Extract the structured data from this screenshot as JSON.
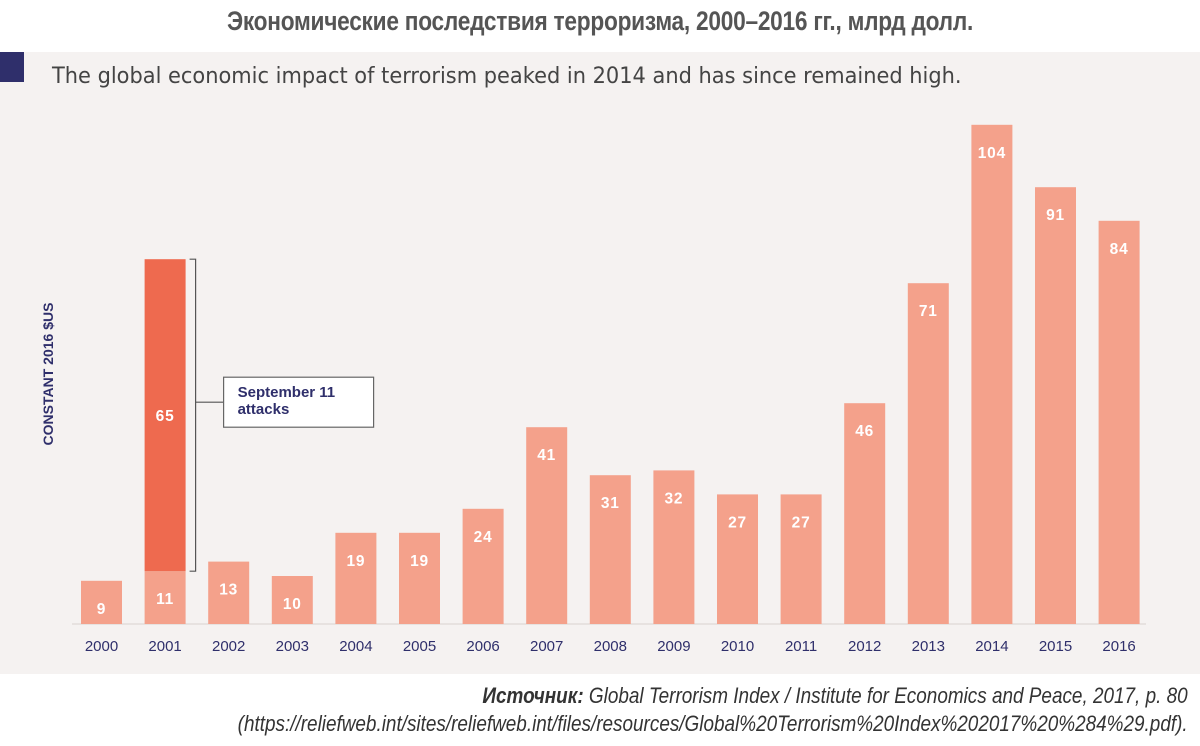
{
  "header": {
    "title": "Экономические последствия терроризма, 2000–2016 гг., млрд долл.",
    "subtitle": "The global economic impact of terrorism peaked in 2014 and has since remained high."
  },
  "source": {
    "label": "Источник:",
    "text": "Global Terrorism Index / Institute for Economics and Peace, 2017, p. 80",
    "url": "(https://reliefweb.int/sites/reliefweb.int/files/resources/Global%20Terrorism%20Index%202017%20%284%29.pdf)."
  },
  "colors": {
    "bar": "#f4a18b",
    "highlight": "#ee6a4f",
    "accent": "#2f2f6b",
    "axis_text": "#2f2f6b",
    "panel": "#f5f2f1"
  },
  "chart_data": {
    "type": "bar",
    "title": "The global economic impact of terrorism peaked in 2014 and has since remained high.",
    "xlabel": "",
    "ylabel": "CONSTANT 2016 $US",
    "ylim": [
      0,
      104
    ],
    "grid": false,
    "categories": [
      "2000",
      "2001",
      "2002",
      "2003",
      "2004",
      "2005",
      "2006",
      "2007",
      "2008",
      "2009",
      "2010",
      "2011",
      "2012",
      "2013",
      "2014",
      "2015",
      "2016"
    ],
    "values": [
      9,
      11,
      13,
      10,
      19,
      19,
      24,
      41,
      31,
      32,
      27,
      27,
      46,
      71,
      104,
      91,
      84
    ],
    "stacked_extra": {
      "category": "2001",
      "value": 65,
      "annotation": [
        "September 11",
        "attacks"
      ]
    }
  }
}
